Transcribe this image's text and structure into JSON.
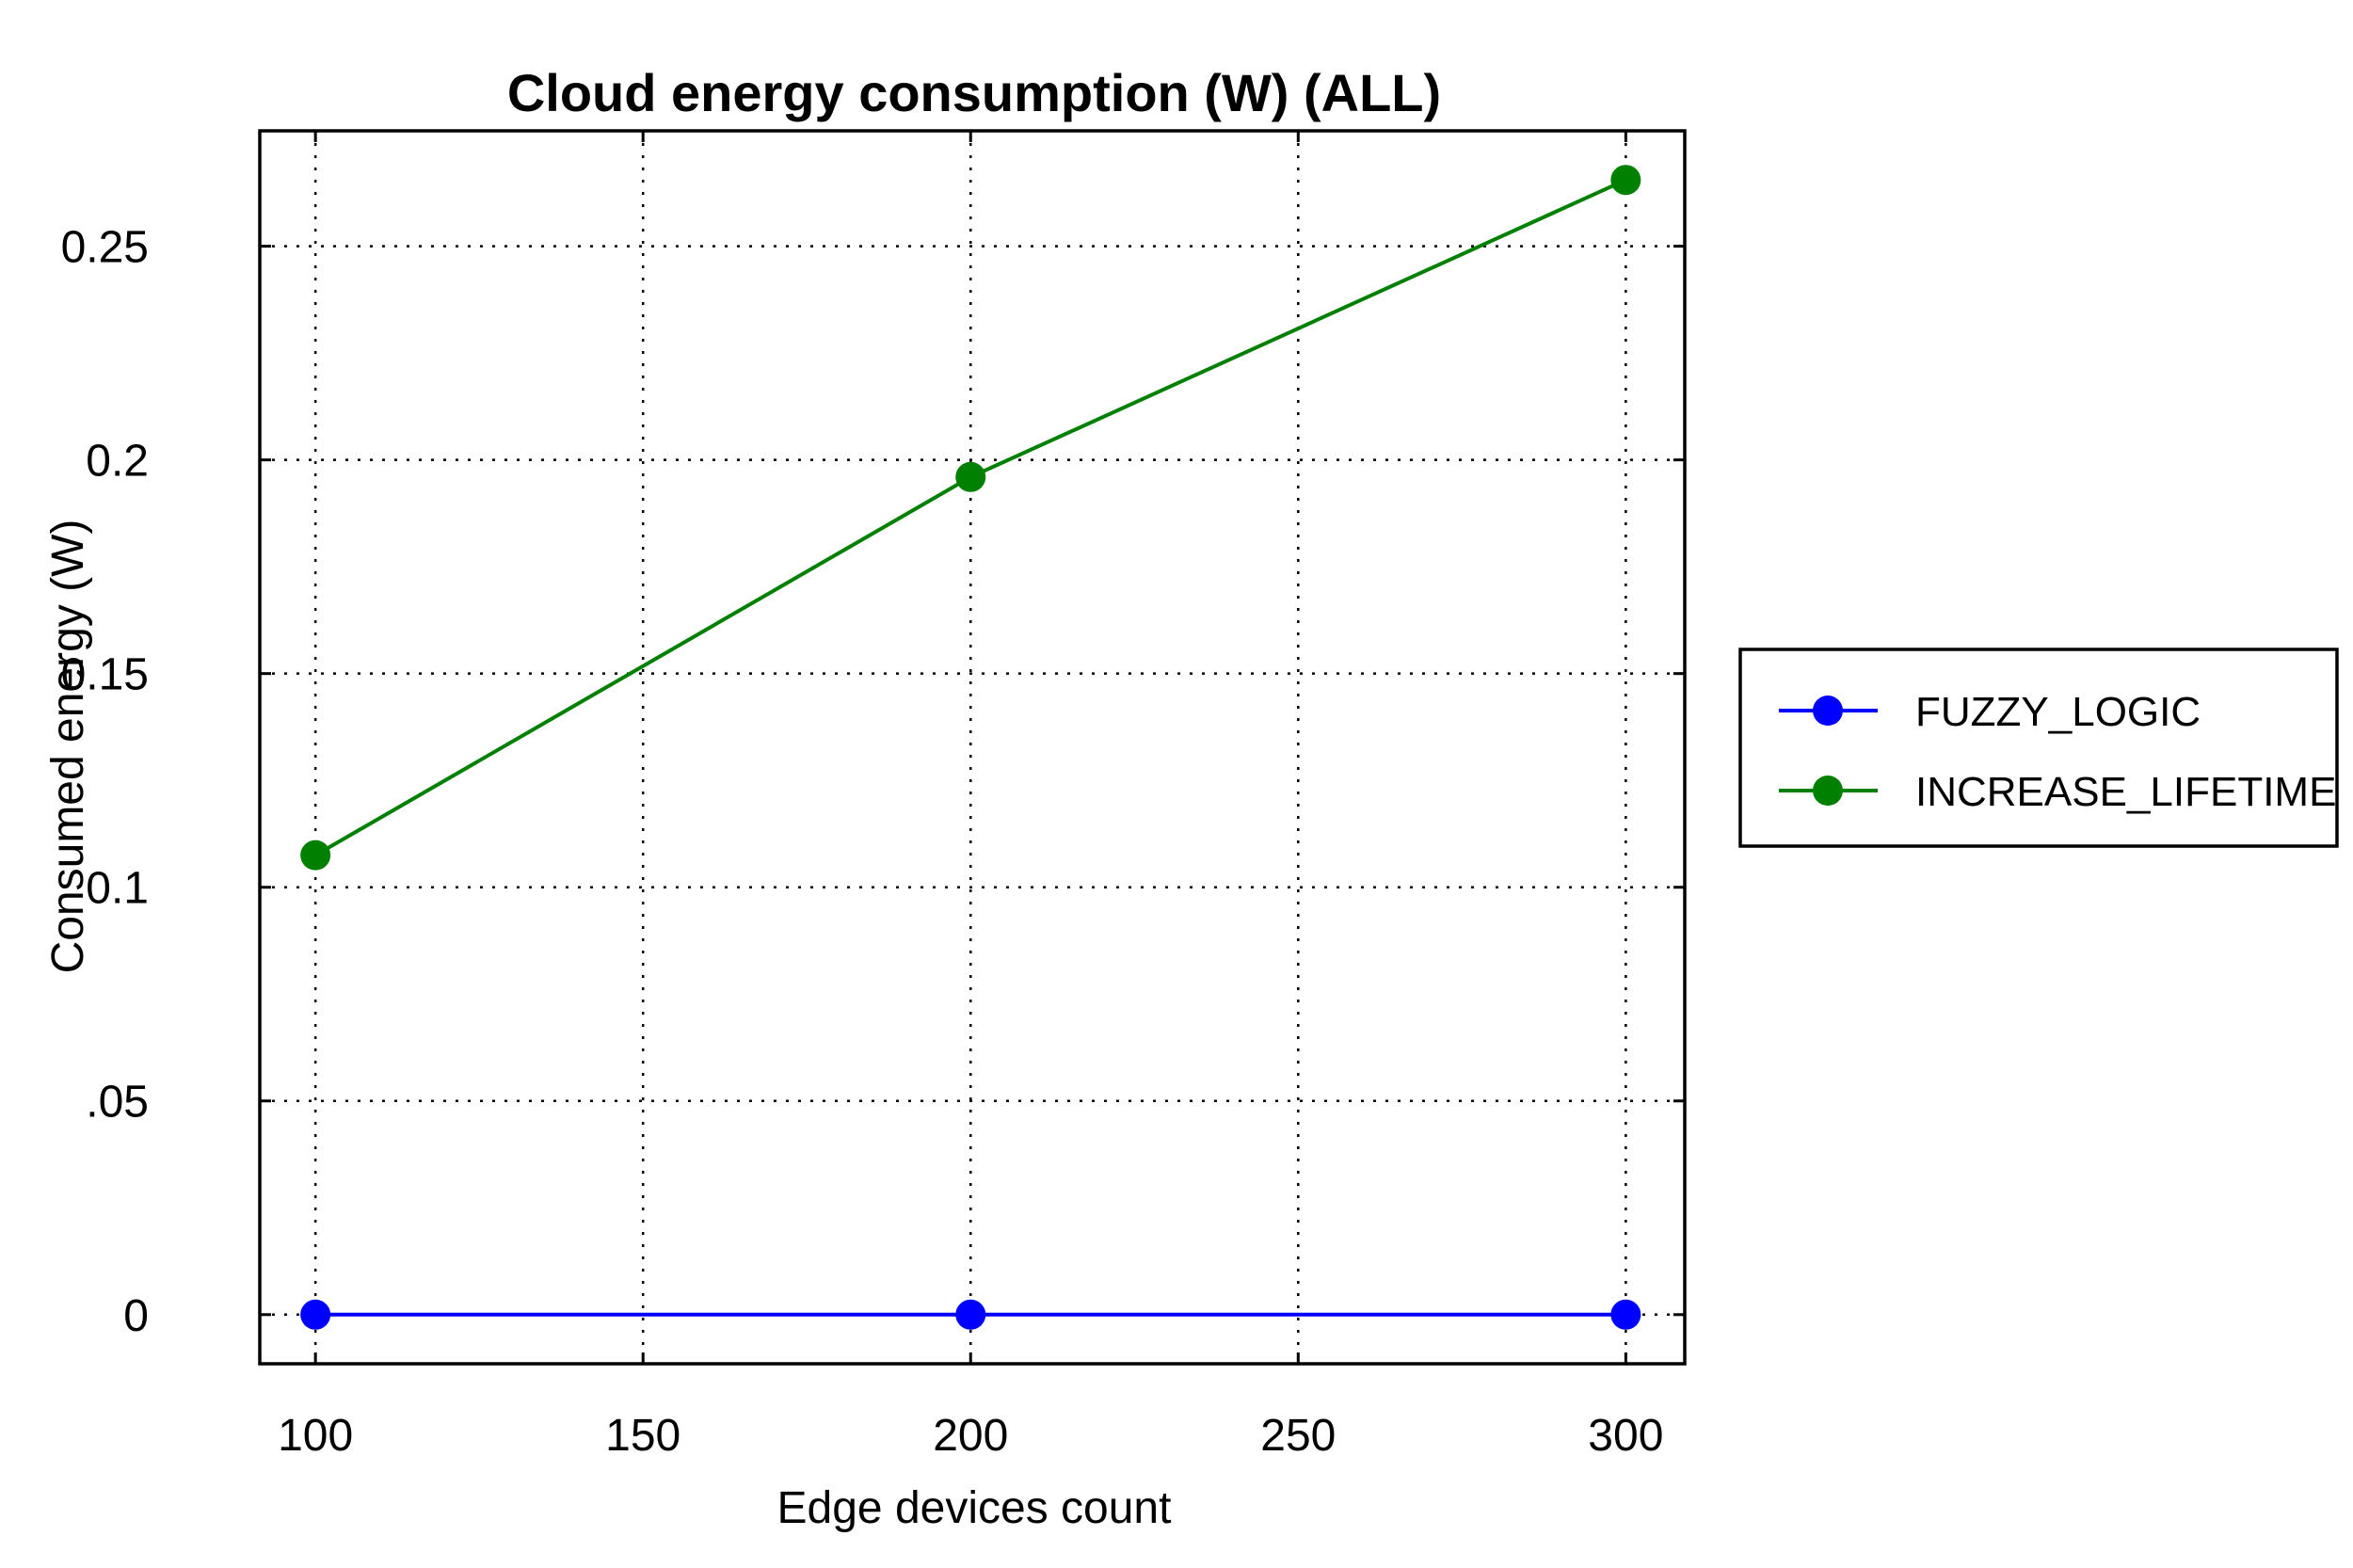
{
  "chart_data": {
    "type": "line",
    "title": "Cloud energy consumption (W) (ALL)",
    "xlabel": "Edge devices count",
    "ylabel": "Consumed energy (W)",
    "x": [
      100,
      200,
      300
    ],
    "xlim": [
      91.5,
      309
    ],
    "ylim": [
      -0.0115,
      0.277
    ],
    "xticks": [
      100,
      150,
      200,
      250,
      300
    ],
    "xtick_labels": [
      "100",
      "150",
      "200",
      "250",
      "300"
    ],
    "yticks": [
      0,
      0.05,
      0.1,
      0.15,
      0.2,
      0.25
    ],
    "ytick_labels": [
      "0",
      ".05",
      "0.1",
      "0.15",
      "0.2",
      "0.25"
    ],
    "grid": true,
    "legend_position": "outside-right",
    "series": [
      {
        "name": "FUZZY_LOGIC",
        "values": [
          0,
          0,
          0
        ],
        "color": "#0000ff",
        "marker": "circle"
      },
      {
        "name": "INCREASE_LIFETIME",
        "values": [
          0.1075,
          0.196,
          0.2655
        ],
        "color": "#008000",
        "marker": "circle"
      }
    ]
  }
}
